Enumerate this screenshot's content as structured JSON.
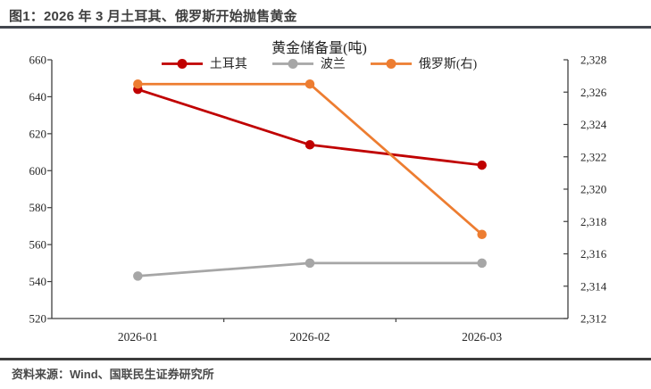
{
  "figure": {
    "title": "图1：2026 年 3 月土耳其、俄罗斯开始抛售黄金",
    "source": "资料来源：Wind、国联民生证券研究所"
  },
  "chart_data": {
    "type": "line",
    "title": "黄金储备量(吨)",
    "categories": [
      "2026-01",
      "2026-02",
      "2026-03"
    ],
    "series": [
      {
        "key": "turkey",
        "name": "土耳其",
        "axis": "left",
        "color": "#C00000",
        "values": [
          644,
          614,
          603
        ]
      },
      {
        "key": "poland",
        "name": "波兰",
        "axis": "left",
        "color": "#A6A6A6",
        "values": [
          543,
          550,
          550
        ]
      },
      {
        "key": "russia",
        "name": "俄罗斯(右)",
        "axis": "right",
        "color": "#ED7D31",
        "values": [
          2326.5,
          2326.5,
          2317.2
        ]
      }
    ],
    "axes": {
      "left": {
        "min": 520,
        "max": 660,
        "step": 20,
        "format": "plain"
      },
      "right": {
        "min": 2312,
        "max": 2328,
        "step": 2,
        "format": "thousands"
      }
    },
    "legend_position": "top",
    "grid": false,
    "axis_color": "#3f3f3f"
  }
}
